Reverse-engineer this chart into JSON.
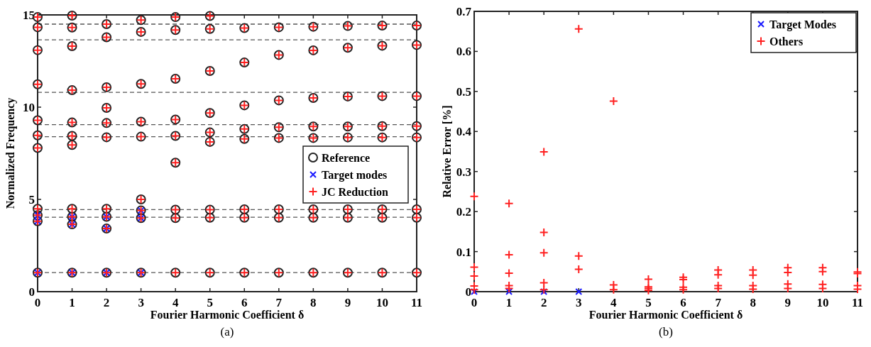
{
  "chart_data": [
    {
      "type": "scatter",
      "xlabel": "Fourier Harmonic Coefficient δ",
      "ylabel": "Normalized Frequency",
      "xlim": [
        0,
        11
      ],
      "xticks": [
        0,
        1,
        2,
        3,
        4,
        5,
        6,
        7,
        8,
        9,
        10,
        11
      ],
      "ylim": [
        0,
        15
      ],
      "yticks": [
        0,
        5,
        10,
        15
      ],
      "grid": false,
      "legend": "right",
      "annotations": [
        "(a)"
      ],
      "ref_lines": [
        {
          "axis": "y",
          "value": 14.5,
          "line_style": "dashed",
          "color": "#555555"
        },
        {
          "axis": "y",
          "value": 13.65,
          "line_style": "dashed",
          "color": "#555555"
        },
        {
          "axis": "y",
          "value": 10.8,
          "line_style": "dashed",
          "color": "#555555"
        },
        {
          "axis": "y",
          "value": 9.05,
          "line_style": "dashed",
          "color": "#555555"
        },
        {
          "axis": "y",
          "value": 8.4,
          "line_style": "dashed",
          "color": "#555555"
        },
        {
          "axis": "y",
          "value": 4.45,
          "line_style": "dashed",
          "color": "#555555"
        },
        {
          "axis": "y",
          "value": 4.03,
          "line_style": "dashed",
          "color": "#555555"
        },
        {
          "axis": "y",
          "value": 1.03,
          "line_style": "dashed",
          "color": "#555555"
        }
      ],
      "series": [
        {
          "name": "Reference",
          "color": "#222222",
          "marker": "circle",
          "x": [
            0,
            0,
            0,
            0,
            0,
            0,
            0,
            0,
            0,
            0,
            0,
            1,
            1,
            1,
            1,
            1,
            1,
            1,
            1,
            1,
            1,
            1,
            2,
            2,
            2,
            2,
            2,
            2,
            2,
            2,
            2,
            2,
            3,
            3,
            3,
            3,
            3,
            3,
            3,
            3,
            3,
            4,
            4,
            4,
            4,
            4,
            4,
            4,
            4,
            4,
            5,
            5,
            5,
            5,
            5,
            5,
            5,
            5,
            5,
            6,
            6,
            6,
            6,
            6,
            6,
            6,
            6,
            7,
            7,
            7,
            7,
            7,
            7,
            7,
            7,
            8,
            8,
            8,
            8,
            8,
            8,
            8,
            8,
            9,
            9,
            9,
            9,
            9,
            9,
            9,
            9,
            10,
            10,
            10,
            10,
            10,
            10,
            10,
            10,
            11,
            11,
            11,
            11,
            11,
            11,
            11,
            11
          ],
          "values": [
            14.88,
            14.33,
            13.09,
            11.24,
            9.29,
            8.47,
            7.79,
            4.49,
            4.14,
            3.82,
            1.03,
            14.96,
            14.32,
            13.31,
            10.92,
            9.17,
            8.44,
            7.95,
            4.49,
            4.06,
            3.65,
            1.03,
            14.5,
            13.79,
            11.08,
            9.96,
            9.14,
            8.37,
            4.49,
            4.06,
            3.42,
            1.03,
            14.72,
            14.08,
            11.26,
            9.21,
            8.4,
            5.0,
            4.4,
            3.99,
            1.03,
            14.88,
            14.18,
            11.54,
            9.33,
            8.44,
            6.99,
            4.44,
            3.99,
            1.03,
            14.94,
            14.24,
            11.96,
            9.68,
            8.63,
            8.12,
            4.44,
            4.01,
            1.03,
            14.29,
            12.42,
            10.1,
            8.82,
            8.28,
            4.46,
            4.01,
            1.03,
            14.33,
            12.83,
            10.37,
            8.91,
            8.33,
            4.46,
            4.01,
            1.03,
            14.36,
            13.08,
            10.5,
            8.95,
            8.33,
            4.46,
            4.01,
            1.03,
            14.4,
            13.22,
            10.58,
            8.95,
            8.36,
            4.46,
            4.01,
            1.03,
            14.42,
            13.33,
            10.6,
            8.97,
            8.36,
            4.46,
            4.01,
            1.03,
            14.42,
            13.37,
            10.6,
            8.97,
            8.36,
            4.46,
            4.01,
            1.03
          ]
        },
        {
          "name": "Target modes",
          "color": "#1a1aff",
          "marker": "x",
          "x": [
            0,
            0,
            0,
            1,
            1,
            1,
            2,
            2,
            2,
            3,
            3,
            3
          ],
          "values": [
            4.14,
            3.82,
            1.03,
            4.06,
            3.65,
            1.03,
            4.06,
            3.42,
            1.03,
            4.4,
            3.99,
            1.03
          ]
        },
        {
          "name": "JC Reduction",
          "color": "#ff2020",
          "marker": "cross",
          "x": [
            0,
            0,
            0,
            0,
            0,
            0,
            0,
            0,
            0,
            0,
            0,
            1,
            1,
            1,
            1,
            1,
            1,
            1,
            1,
            1,
            1,
            1,
            2,
            2,
            2,
            2,
            2,
            2,
            2,
            2,
            2,
            2,
            3,
            3,
            3,
            3,
            3,
            3,
            3,
            3,
            3,
            4,
            4,
            4,
            4,
            4,
            4,
            4,
            4,
            4,
            5,
            5,
            5,
            5,
            5,
            5,
            5,
            5,
            5,
            6,
            6,
            6,
            6,
            6,
            6,
            6,
            6,
            7,
            7,
            7,
            7,
            7,
            7,
            7,
            7,
            8,
            8,
            8,
            8,
            8,
            8,
            8,
            8,
            9,
            9,
            9,
            9,
            9,
            9,
            9,
            9,
            10,
            10,
            10,
            10,
            10,
            10,
            10,
            10,
            11,
            11,
            11,
            11,
            11,
            11,
            11,
            11
          ],
          "values": [
            14.88,
            14.33,
            13.09,
            11.24,
            9.29,
            8.47,
            7.79,
            4.49,
            4.14,
            3.82,
            1.03,
            14.96,
            14.32,
            13.31,
            10.92,
            9.17,
            8.44,
            7.95,
            4.49,
            4.06,
            3.65,
            1.03,
            14.5,
            13.79,
            11.08,
            9.96,
            9.14,
            8.37,
            4.49,
            4.06,
            3.42,
            1.03,
            14.72,
            14.08,
            11.26,
            9.21,
            8.4,
            5.0,
            4.4,
            3.99,
            1.03,
            14.88,
            14.18,
            11.54,
            9.33,
            8.44,
            6.99,
            4.44,
            3.99,
            1.03,
            14.94,
            14.24,
            11.96,
            9.68,
            8.63,
            8.12,
            4.44,
            4.01,
            1.03,
            14.29,
            12.42,
            10.1,
            8.82,
            8.28,
            4.46,
            4.01,
            1.03,
            14.33,
            12.83,
            10.37,
            8.91,
            8.33,
            4.46,
            4.01,
            1.03,
            14.36,
            13.08,
            10.5,
            8.95,
            8.33,
            4.46,
            4.01,
            1.03,
            14.4,
            13.22,
            10.58,
            8.95,
            8.36,
            4.46,
            4.01,
            1.03,
            14.42,
            13.33,
            10.6,
            8.97,
            8.36,
            4.46,
            4.01,
            1.03,
            14.42,
            13.37,
            10.6,
            8.97,
            8.36,
            4.46,
            4.01,
            1.03
          ]
        }
      ]
    },
    {
      "type": "scatter",
      "xlabel": "Fourier Harmonic Coefficient δ",
      "ylabel": "Relative Error [%]",
      "xlim": [
        0,
        11
      ],
      "xticks": [
        0,
        1,
        2,
        3,
        4,
        5,
        6,
        7,
        8,
        9,
        10,
        11
      ],
      "ylim": [
        0,
        0.7
      ],
      "yticks": [
        0,
        0.1,
        0.2,
        0.3,
        0.4,
        0.5,
        0.6,
        0.7
      ],
      "grid": false,
      "legend": "top right",
      "annotations": [
        "(b)"
      ],
      "series": [
        {
          "name": "Target Modes",
          "color": "#1a1aff",
          "marker": "x",
          "x": [
            0,
            1,
            2,
            3
          ],
          "values": [
            0,
            0,
            0,
            0
          ]
        },
        {
          "name": "Others",
          "color": "#ff2020",
          "marker": "cross",
          "x": [
            0,
            0,
            0,
            0,
            0,
            1,
            1,
            1,
            1,
            1,
            2,
            2,
            2,
            2,
            2,
            3,
            3,
            3,
            4,
            4,
            4,
            5,
            5,
            5,
            5,
            6,
            6,
            6,
            6,
            7,
            7,
            7,
            7,
            8,
            8,
            8,
            8,
            9,
            9,
            9,
            9,
            10,
            10,
            10,
            10,
            11,
            11,
            11,
            11
          ],
          "values": [
            0.238,
            0.061,
            0.039,
            0.014,
            0.005,
            0.22,
            0.092,
            0.046,
            0.015,
            0.008,
            0.349,
            0.148,
            0.097,
            0.022,
            0.005,
            0.656,
            0.089,
            0.056,
            0.476,
            0.017,
            0.005,
            0.031,
            0.012,
            0.008,
            0.003,
            0.036,
            0.03,
            0.011,
            0.005,
            0.054,
            0.042,
            0.015,
            0.008,
            0.054,
            0.041,
            0.015,
            0.006,
            0.06,
            0.048,
            0.019,
            0.008,
            0.06,
            0.05,
            0.018,
            0.008,
            0.049,
            0.045,
            0.015,
            0.006
          ]
        }
      ]
    }
  ]
}
